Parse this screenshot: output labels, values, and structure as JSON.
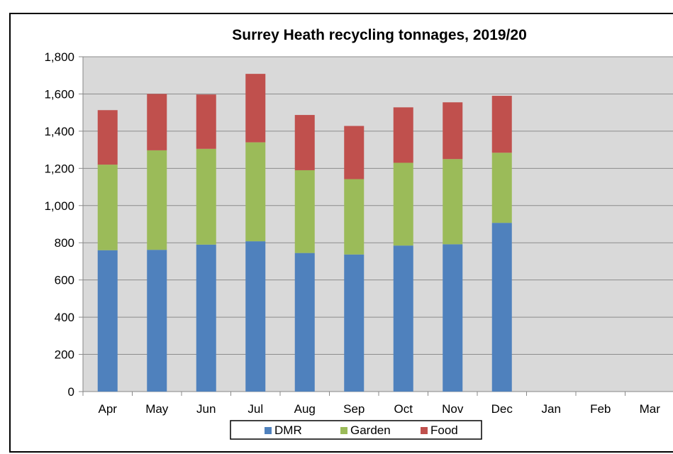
{
  "chart_data": {
    "type": "bar",
    "stacked": true,
    "title": "Surrey Heath recycling tonnages, 2019/20",
    "xlabel": "",
    "ylabel": "",
    "categories": [
      "Apr",
      "May",
      "Jun",
      "Jul",
      "Aug",
      "Sep",
      "Oct",
      "Nov",
      "Dec",
      "Jan",
      "Feb",
      "Mar"
    ],
    "yticks": [
      "0",
      "200",
      "400",
      "600",
      "800",
      "1,000",
      "1,200",
      "1,400",
      "1,600",
      "1,800"
    ],
    "ylim": [
      0,
      1800
    ],
    "grid": true,
    "legend_position": "bottom",
    "series": [
      {
        "name": "DMR",
        "color": "#4F81BD",
        "values": [
          760,
          762,
          790,
          808,
          745,
          737,
          785,
          792,
          907,
          null,
          null,
          null
        ]
      },
      {
        "name": "Garden",
        "color": "#9BBB59",
        "values": [
          460,
          535,
          515,
          532,
          445,
          405,
          445,
          458,
          377,
          null,
          null,
          null
        ]
      },
      {
        "name": "Food",
        "color": "#C0504D",
        "values": [
          293,
          303,
          292,
          368,
          297,
          286,
          298,
          305,
          306,
          null,
          null,
          null
        ]
      }
    ],
    "plot_background": "#D9D9D9"
  }
}
